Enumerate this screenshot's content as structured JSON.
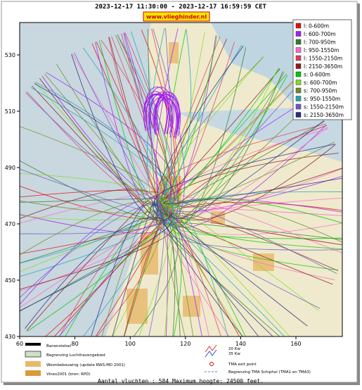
{
  "header": {
    "title": "2023-12-17 11:30:00 - 2023-12-17 16:59:59 CET",
    "site": "www.vlieghinder.nl"
  },
  "axes": {
    "x_ticks": [
      60,
      80,
      100,
      120,
      140,
      160
    ],
    "y_ticks": [
      430,
      450,
      470,
      490,
      510,
      530
    ]
  },
  "legend": {
    "items": [
      {
        "label": "l: 0-600m",
        "color": "#e01010"
      },
      {
        "label": "l: 600-700m",
        "color": "#a020f0"
      },
      {
        "label": "l: 700-950m",
        "color": "#2e7d32"
      },
      {
        "label": "l: 950-1550m",
        "color": "#ff66cc"
      },
      {
        "label": "l: 1550-2150m",
        "color": "#e03c5a"
      },
      {
        "label": "l: 2150-3650m",
        "color": "#8b1a1a"
      },
      {
        "label": "s: 0-600m",
        "color": "#00c800"
      },
      {
        "label": "s: 600-700m",
        "color": "#80e020"
      },
      {
        "label": "s: 700-950m",
        "color": "#6b8e23"
      },
      {
        "label": "s: 950-1550m",
        "color": "#1fa8b0"
      },
      {
        "label": "s: 1550-2150m",
        "color": "#6a5acd"
      },
      {
        "label": "s: 2150-3650m",
        "color": "#2a2a80"
      }
    ]
  },
  "bottom_legend": {
    "runways": "Banenstelsel",
    "airport_boundary": "Begrenzing Luchthavengebied",
    "housing": "Woonbebouwing (update RWS-MD 2001)",
    "vinex": "Vinex2001 (bron: RPD)",
    "kw20": "20 Kw",
    "kw35": "35 Kw",
    "tma_exit": "TMA exit point",
    "tma_boundary": "Begrenzing TMA Schiphol  (TMA1 en TMA3)"
  },
  "footer": "Aantal vluchten : 584 Maximum hoogte: 24500 feet."
}
